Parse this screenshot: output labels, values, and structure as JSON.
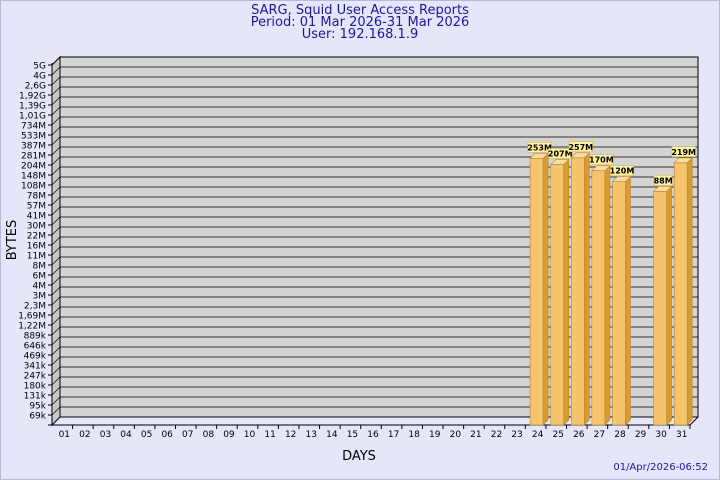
{
  "chart_data": {
    "type": "bar",
    "title": "SARG, Squid User Access Reports",
    "subtitle_period": "Period: 01 Mar 2026-31 Mar 2026",
    "subtitle_user": "User: 192.168.1.9",
    "xlabel": "DAYS",
    "ylabel": "BYTES",
    "y_ticks": [
      "5G",
      "4G",
      "2,6G",
      "1,92G",
      "1,39G",
      "1,01G",
      "734M",
      "533M",
      "387M",
      "281M",
      "204M",
      "148M",
      "108M",
      "78M",
      "57M",
      "41M",
      "30M",
      "22M",
      "16M",
      "11M",
      "8M",
      "6M",
      "4M",
      "3M",
      "2,3M",
      "1,69M",
      "1,22M",
      "889k",
      "646k",
      "469k",
      "341k",
      "247k",
      "180k",
      "131k",
      "95k",
      "69k"
    ],
    "categories": [
      "01",
      "02",
      "03",
      "04",
      "05",
      "06",
      "07",
      "08",
      "09",
      "10",
      "11",
      "12",
      "13",
      "14",
      "15",
      "16",
      "17",
      "18",
      "19",
      "20",
      "21",
      "22",
      "23",
      "24",
      "25",
      "26",
      "27",
      "28",
      "29",
      "30",
      "31"
    ],
    "bars": [
      {
        "day": "24",
        "value": 253,
        "label": "253M"
      },
      {
        "day": "25",
        "value": 207,
        "label": "207M"
      },
      {
        "day": "26",
        "value": 257,
        "label": "257M"
      },
      {
        "day": "27",
        "value": 170,
        "label": "170M"
      },
      {
        "day": "28",
        "value": 120,
        "label": "120M"
      },
      {
        "day": "30",
        "value": 88,
        "label": "88M"
      },
      {
        "day": "31",
        "value": 219,
        "label": "219M"
      }
    ],
    "value_unit": "M",
    "y_scale": "log",
    "grid": true,
    "legend": "none"
  },
  "footer_timestamp": "01/Apr/2026-06:52",
  "colors": {
    "background": "#e6e6fa",
    "plot_area": "#d3d3d3",
    "bar_front": "#f5c46d",
    "bar_side": "#d99a32",
    "bar_top": "#fadba0",
    "label_bg": "#fff2a0",
    "title": "#1a1a99"
  }
}
